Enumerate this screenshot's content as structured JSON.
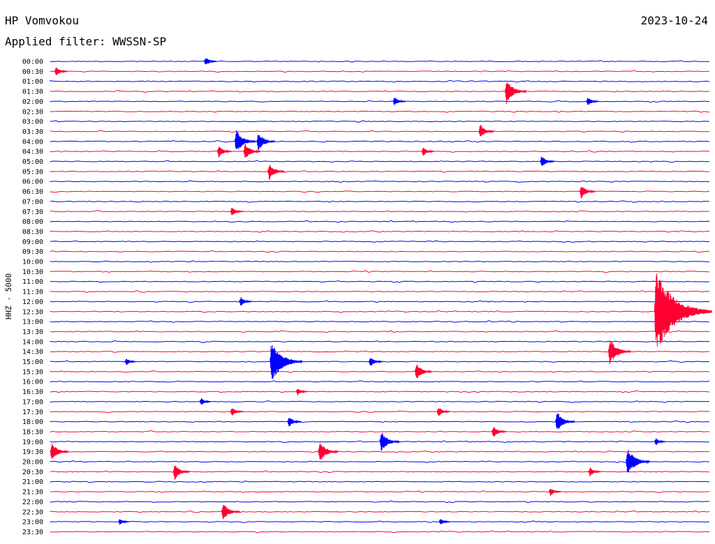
{
  "header": {
    "station": "HP Vomvokou",
    "date": "2023-10-24",
    "filter": "Applied filter: WWSSN-SP"
  },
  "colors": {
    "even_trace": "#0000ff",
    "odd_trace": "#ff0033",
    "text": "#000000",
    "background": "#ffffff"
  },
  "chart_data": {
    "type": "line",
    "ylabel": "HHZ - 5000",
    "rows": [
      "00:00",
      "00:30",
      "01:00",
      "01:30",
      "02:00",
      "02:30",
      "03:00",
      "03:30",
      "04:00",
      "04:30",
      "05:00",
      "05:30",
      "06:00",
      "06:30",
      "07:00",
      "07:30",
      "08:00",
      "08:30",
      "09:00",
      "09:30",
      "10:00",
      "10:30",
      "11:00",
      "11:30",
      "12:00",
      "12:30",
      "13:00",
      "13:30",
      "14:00",
      "14:30",
      "15:00",
      "15:30",
      "16:00",
      "16:30",
      "17:00",
      "17:30",
      "18:00",
      "18:30",
      "19:00",
      "19:30",
      "20:00",
      "20:30",
      "21:00",
      "21:30",
      "22:00",
      "22:30",
      "23:00",
      "23:30"
    ],
    "row_minutes": 30,
    "events": [
      {
        "row": 0,
        "minute": 7.0,
        "amp": 1.0
      },
      {
        "row": 1,
        "minute": 0.2,
        "amp": 1.0
      },
      {
        "row": 3,
        "minute": 20.7,
        "amp": 2.6
      },
      {
        "row": 4,
        "minute": 15.6,
        "amp": 1.0
      },
      {
        "row": 4,
        "minute": 24.4,
        "amp": 1.0
      },
      {
        "row": 7,
        "minute": 19.5,
        "amp": 1.5
      },
      {
        "row": 8,
        "minute": 8.4,
        "amp": 2.5
      },
      {
        "row": 8,
        "minute": 9.4,
        "amp": 2.0
      },
      {
        "row": 9,
        "minute": 7.6,
        "amp": 1.3
      },
      {
        "row": 9,
        "minute": 8.8,
        "amp": 1.8
      },
      {
        "row": 9,
        "minute": 16.9,
        "amp": 1.0
      },
      {
        "row": 10,
        "minute": 22.3,
        "amp": 1.3
      },
      {
        "row": 11,
        "minute": 9.9,
        "amp": 1.8
      },
      {
        "row": 13,
        "minute": 24.1,
        "amp": 1.5
      },
      {
        "row": 15,
        "minute": 8.2,
        "amp": 1.0
      },
      {
        "row": 25,
        "minute": 27.5,
        "amp": 9.0
      },
      {
        "row": 24,
        "minute": 8.6,
        "amp": 1.0
      },
      {
        "row": 30,
        "minute": 10.0,
        "amp": 4.5
      },
      {
        "row": 30,
        "minute": 14.5,
        "amp": 1.2
      },
      {
        "row": 30,
        "minute": 3.4,
        "amp": 0.8
      },
      {
        "row": 31,
        "minute": 16.6,
        "amp": 1.8
      },
      {
        "row": 29,
        "minute": 25.4,
        "amp": 2.8
      },
      {
        "row": 33,
        "minute": 11.2,
        "amp": 0.8
      },
      {
        "row": 34,
        "minute": 6.8,
        "amp": 0.8
      },
      {
        "row": 35,
        "minute": 8.2,
        "amp": 1.0
      },
      {
        "row": 35,
        "minute": 17.6,
        "amp": 1.1
      },
      {
        "row": 36,
        "minute": 10.8,
        "amp": 1.2
      },
      {
        "row": 36,
        "minute": 23.0,
        "amp": 2.2
      },
      {
        "row": 37,
        "minute": 20.1,
        "amp": 1.3
      },
      {
        "row": 38,
        "minute": 15.0,
        "amp": 2.3
      },
      {
        "row": 38,
        "minute": 27.5,
        "amp": 0.8
      },
      {
        "row": 39,
        "minute": 0.0,
        "amp": 2.0
      },
      {
        "row": 39,
        "minute": 12.2,
        "amp": 2.3
      },
      {
        "row": 40,
        "minute": 26.2,
        "amp": 3.0
      },
      {
        "row": 41,
        "minute": 5.6,
        "amp": 1.7
      },
      {
        "row": 41,
        "minute": 24.5,
        "amp": 1.0
      },
      {
        "row": 43,
        "minute": 22.7,
        "amp": 0.9
      },
      {
        "row": 45,
        "minute": 7.8,
        "amp": 2.0
      },
      {
        "row": 46,
        "minute": 3.1,
        "amp": 0.7
      },
      {
        "row": 46,
        "minute": 17.7,
        "amp": 0.7
      }
    ]
  }
}
